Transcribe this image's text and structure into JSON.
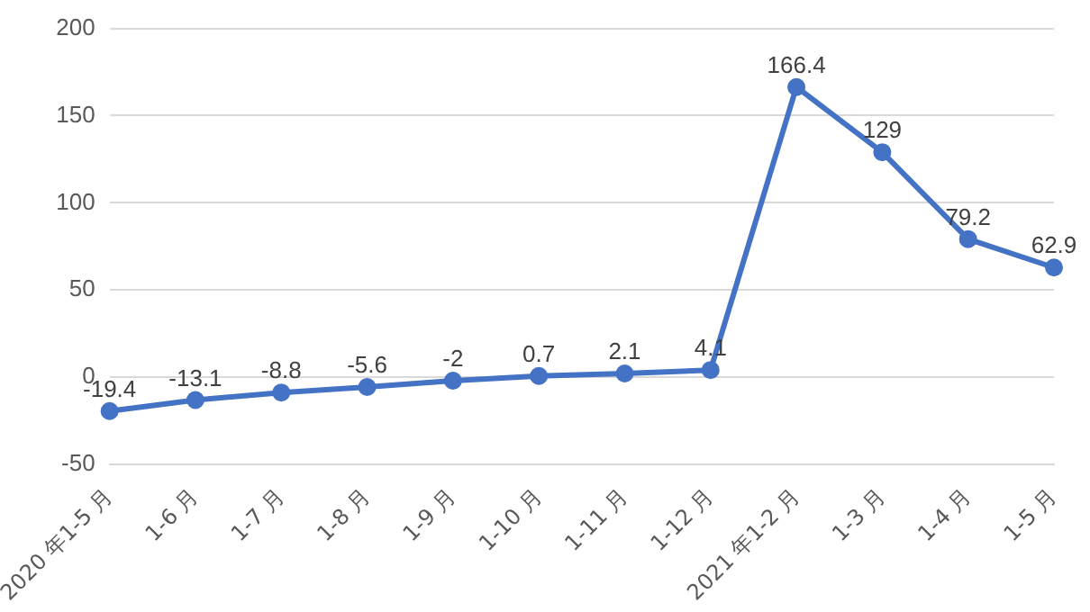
{
  "chart_data": {
    "type": "line",
    "categories": [
      "2020 年1-5 月",
      "1-6 月",
      "1-7 月",
      "1-8 月",
      "1-9 月",
      "1-10 月",
      "1-11 月",
      "1-12 月",
      "2021 年1-2 月",
      "1-3 月",
      "1-4 月",
      "1-5 月"
    ],
    "series": [
      {
        "color": "#4472c4",
        "values": [
          -19.4,
          -13.1,
          -8.8,
          -5.6,
          -2,
          0.7,
          2.1,
          4.1,
          166.4,
          129,
          79.2,
          62.9
        ]
      }
    ],
    "ylim": [
      -50,
      200
    ],
    "yticks": [
      -50,
      0,
      50,
      100,
      150,
      200
    ],
    "grid": "y",
    "legend": false,
    "marker": "circle",
    "data_labels": true
  }
}
